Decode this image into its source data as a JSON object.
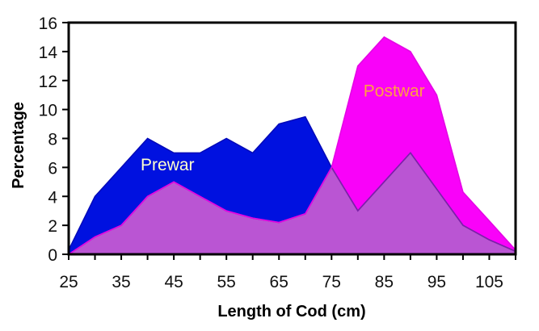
{
  "chart_data": {
    "type": "area",
    "title": "",
    "xlabel": "Length of Cod (cm)",
    "ylabel": "Percentage",
    "x_range": [
      25,
      110
    ],
    "y_range": [
      0,
      16
    ],
    "grid": false,
    "legend_position": "none",
    "background": "#ffffff",
    "axis_color": "#000000",
    "x": [
      25,
      30,
      35,
      40,
      45,
      50,
      55,
      60,
      65,
      70,
      75,
      80,
      85,
      90,
      95,
      100,
      105,
      110
    ],
    "series": [
      {
        "name": "Prewar",
        "values": [
          0.3,
          4,
          6,
          8,
          7,
          7,
          8,
          7,
          9,
          9.5,
          6,
          3,
          5,
          7,
          4.5,
          2,
          1,
          0.2
        ],
        "fill": "#0011e0",
        "stroke": "#0009b8",
        "label_color": "#ffffcc"
      },
      {
        "name": "Postwar",
        "values": [
          0,
          1.2,
          2,
          4,
          5,
          4,
          3,
          2.5,
          2.2,
          2.8,
          6,
          13,
          15,
          14,
          11,
          4.3,
          2.3,
          0.3
        ],
        "fill": "#f902f9",
        "stroke": "#e504e5",
        "label_color": "#ffa040"
      }
    ],
    "overlap": {
      "fill": "#ba55d3",
      "stroke": "#7d22a8"
    },
    "x_tick_minor_step": 5,
    "x_tick_label_values": [
      25,
      35,
      45,
      55,
      65,
      75,
      85,
      95,
      105
    ],
    "x_tick_labels": [
      "25",
      "35",
      "45",
      "55",
      "65",
      "75",
      "85",
      "95",
      "105"
    ],
    "y_tick_step": 2,
    "y_tick_values": [
      0,
      2,
      4,
      6,
      8,
      10,
      12,
      14,
      16
    ],
    "y_tick_labels": [
      "0",
      "2",
      "4",
      "6",
      "8",
      "10",
      "12",
      "14",
      "16"
    ],
    "annotations": [
      {
        "text": "Prewar",
        "x_cm": 43.8,
        "y_val": 6.2,
        "color": "#ffffcc"
      },
      {
        "text": "Postwar",
        "x_cm": 86.9,
        "y_val": 11.3,
        "color": "#ffa040"
      }
    ]
  }
}
